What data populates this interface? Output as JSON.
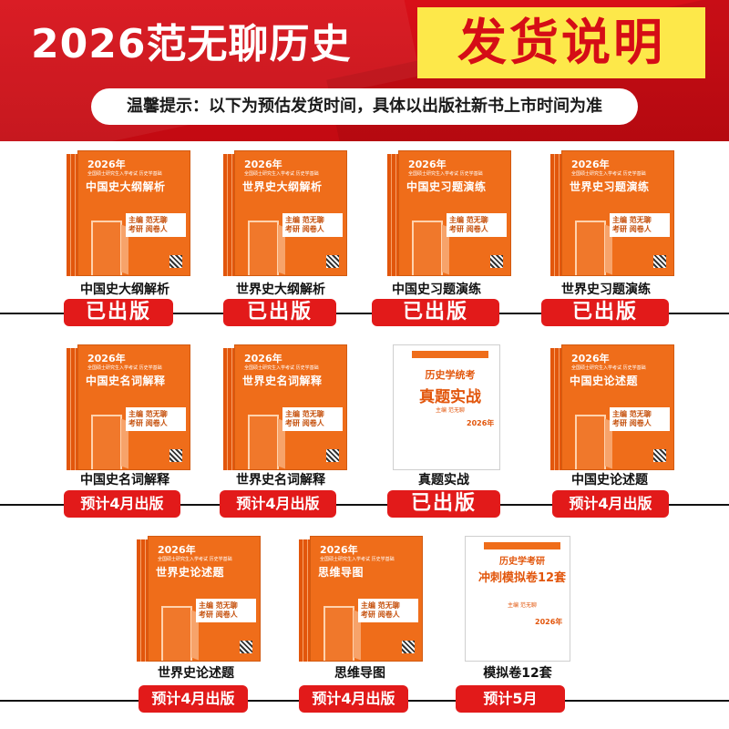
{
  "header": {
    "title_left": "2026范无聊历史",
    "title_right": "发货说明",
    "tip": "温馨提示：以下为预估发货时间，具体以出版社新书上市时间为准"
  },
  "colors": {
    "banner": "#d80f18",
    "accent_yellow": "#fde84a",
    "book_orange": "#ef6d1a",
    "tag_red": "#e21a1a"
  },
  "cover_common": {
    "year": "2026年",
    "subtitle": "全国硕士研究生入学考试 历史学基础",
    "editor": "主编 范无聊",
    "brand": "考研 阅卷人"
  },
  "books": [
    {
      "cover_title": "中国史大纲解析",
      "caption": "中国史大纲解析",
      "status": "已出版"
    },
    {
      "cover_title": "世界史大纲解析",
      "caption": "世界史大纲解析",
      "status": "已出版"
    },
    {
      "cover_title": "中国史习题演练",
      "caption": "中国史习题演练",
      "status": "已出版"
    },
    {
      "cover_title": "世界史习题演练",
      "caption": "世界史习题演练",
      "status": "已出版"
    },
    {
      "cover_title": "中国史名词解释",
      "caption": "中国史名词解释",
      "status": "预计4月出版"
    },
    {
      "cover_title": "世界史名词解释",
      "caption": "世界史名词解释",
      "status": "预计4月出版"
    },
    {
      "cover_title": "真题实战",
      "cover_top": "历史学统考",
      "caption": "真题实战",
      "status": "已出版"
    },
    {
      "cover_title": "中国史论述题",
      "caption": "中国史论述题",
      "status": "预计4月出版"
    },
    {
      "cover_title": "世界史论述题",
      "caption": "世界史论述题",
      "status": "预计4月出版"
    },
    {
      "cover_title": "思维导图",
      "caption": "思维导图",
      "status": "预计4月出版"
    },
    {
      "cover_title": "冲刺模拟卷12套",
      "cover_top": "历史学考研",
      "caption": "模拟卷12套",
      "status": "预计5月"
    }
  ]
}
